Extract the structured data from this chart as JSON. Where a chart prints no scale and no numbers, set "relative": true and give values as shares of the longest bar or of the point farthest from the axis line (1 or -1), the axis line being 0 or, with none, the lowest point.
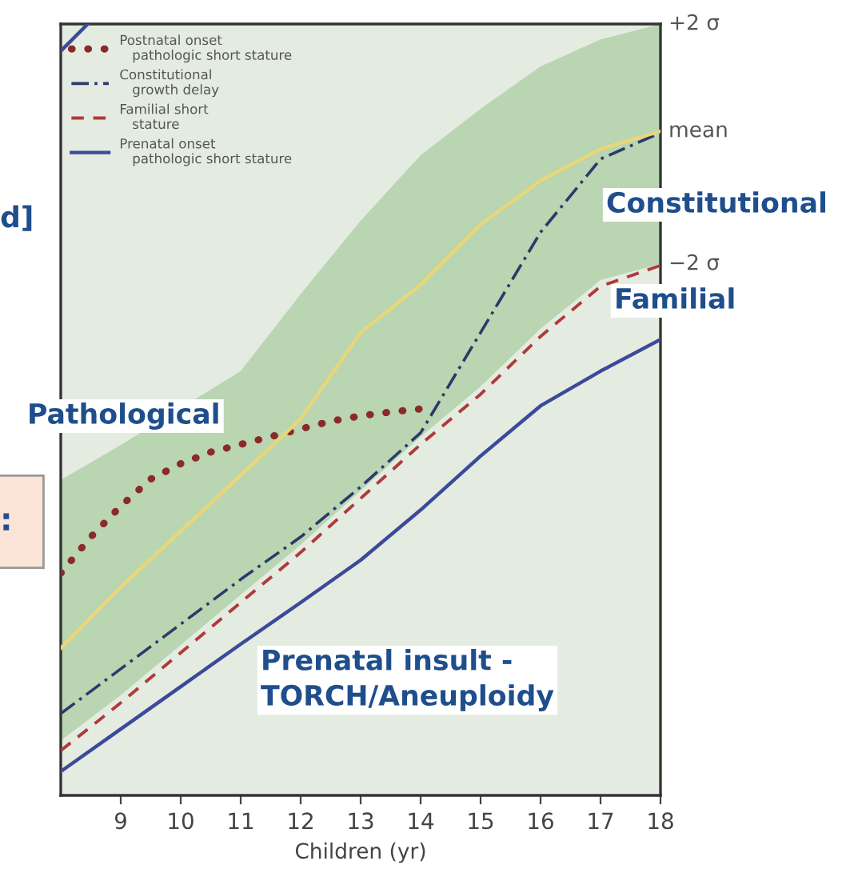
{
  "chart_data": {
    "type": "line",
    "relative": true,
    "xlabel": "Children (yr)",
    "xlim": [
      8,
      18
    ],
    "xticks": [
      9,
      10,
      11,
      12,
      13,
      14,
      15,
      16,
      17,
      18
    ],
    "grid": false,
    "legend": "top left",
    "series": [
      {
        "name": "Postnatal onset\n   pathologic short stature",
        "color": "#8b2a2a",
        "line_style": "dotted",
        "x": [
          8,
          8.5,
          9,
          9.5,
          10,
          10.5,
          11,
          11.5,
          12,
          12.5,
          13,
          13.5,
          14,
          14.16
        ],
        "values": [
          0.288,
          0.335,
          0.375,
          0.41,
          0.43,
          0.445,
          0.455,
          0.465,
          0.475,
          0.485,
          0.492,
          0.497,
          0.501,
          0.502
        ]
      },
      {
        "name": "Constitutional\n   growth delay",
        "color": "#2b3a6b",
        "line_style": "dashdot",
        "x": [
          8,
          9,
          10,
          11,
          12,
          13,
          14,
          15,
          16,
          17,
          18
        ],
        "values": [
          0.106,
          0.164,
          0.222,
          0.28,
          0.335,
          0.4,
          0.47,
          0.6,
          0.73,
          0.825,
          0.859
        ]
      },
      {
        "name": "Familial short\n   stature",
        "color": "#b03a3a",
        "line_style": "dashed",
        "x": [
          8,
          9,
          10,
          11,
          12,
          13,
          14,
          15,
          16,
          17,
          18
        ],
        "values": [
          0.058,
          0.12,
          0.185,
          0.25,
          0.315,
          0.385,
          0.455,
          0.52,
          0.595,
          0.66,
          0.687
        ]
      },
      {
        "name": "Prenatal onset\n   pathologic short stature",
        "color": "#3b4a9a",
        "line_style": "solid",
        "x": [
          8,
          9,
          10,
          11,
          12,
          13,
          14,
          15,
          16,
          17,
          18
        ],
        "values": [
          0.031,
          0.086,
          0.141,
          0.196,
          0.25,
          0.305,
          0.37,
          0.44,
          0.505,
          0.55,
          0.591
        ]
      },
      {
        "color": "#e8d77a",
        "line_style": "solid",
        "x": [
          8,
          9,
          11,
          12,
          13,
          14,
          15,
          16,
          17,
          18
        ],
        "values": [
          0.191,
          0.27,
          0.415,
          0.488,
          0.6,
          0.662,
          0.74,
          0.797,
          0.838,
          0.861
        ],
        "lower": [
          0.071,
          0.13,
          0.26,
          0.325,
          0.395,
          0.465,
          0.53,
          0.605,
          0.668,
          0.689
        ],
        "upper": [
          0.409,
          0.454,
          0.55,
          0.65,
          0.745,
          0.83,
          0.89,
          0.945,
          0.98,
          1.0
        ]
      },
      {
        "color": "#3b4a9a",
        "line_style": "solid",
        "x": [
          8,
          8.45
        ],
        "values": [
          0.965,
          1.0
        ]
      }
    ],
    "annotations": [
      "+2 σ",
      "mean",
      "−2 σ",
      "Constitutional",
      "Familial",
      "Pathological",
      "Prenatal insult -\nTORCH/Aneuploidy",
      "d]",
      ":"
    ]
  }
}
